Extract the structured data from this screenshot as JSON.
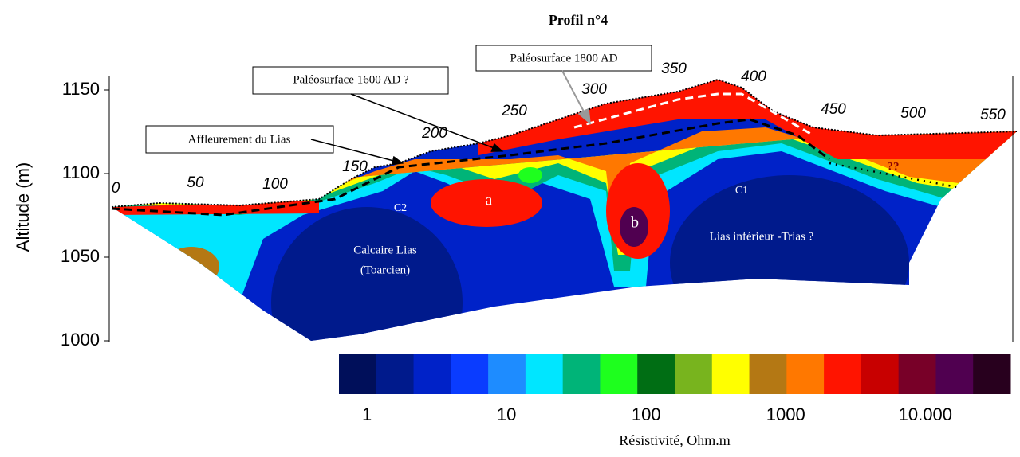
{
  "chart_data": {
    "type": "contour",
    "title": "Profil n°4",
    "y_label": "Altitude (m)",
    "ylim": [
      1000,
      1150
    ],
    "yticks": [
      1000,
      1050,
      1100,
      1150
    ],
    "xlim": [
      0,
      550
    ],
    "distance_labels": [
      0,
      50,
      100,
      150,
      200,
      250,
      300,
      350,
      400,
      450,
      500,
      550
    ],
    "annotations": {
      "box_1800": "Paléosurface 1800 AD",
      "box_1600": "Paléosurface 1600 AD ?",
      "box_lias": "Affleurement du Lias",
      "a": "a",
      "b": "b",
      "c1": "C1",
      "c2": "C2",
      "calcaire": "Calcaire Lias",
      "toarcien": "(Toarcien)",
      "lias_inf": "Lias inférieur -Trias ?",
      "question": "??"
    },
    "colorbar": {
      "label": "Résistivité, Ohm.m",
      "log": true,
      "clim": [
        0.63,
        40700
      ],
      "colors": [
        "#000f5a",
        "#001a8c",
        "#0022c8",
        "#0a3cff",
        "#1e8cff",
        "#00e6ff",
        "#00b478",
        "#1eff1e",
        "#006e14",
        "#78b41e",
        "#ffff00",
        "#b47814",
        "#ff7800",
        "#ff1400",
        "#c80000",
        "#780028",
        "#500050",
        "#28001e"
      ],
      "ticks": [
        1,
        10,
        100,
        1000,
        {
          "value": 10000,
          "label": "10.000"
        }
      ]
    }
  }
}
